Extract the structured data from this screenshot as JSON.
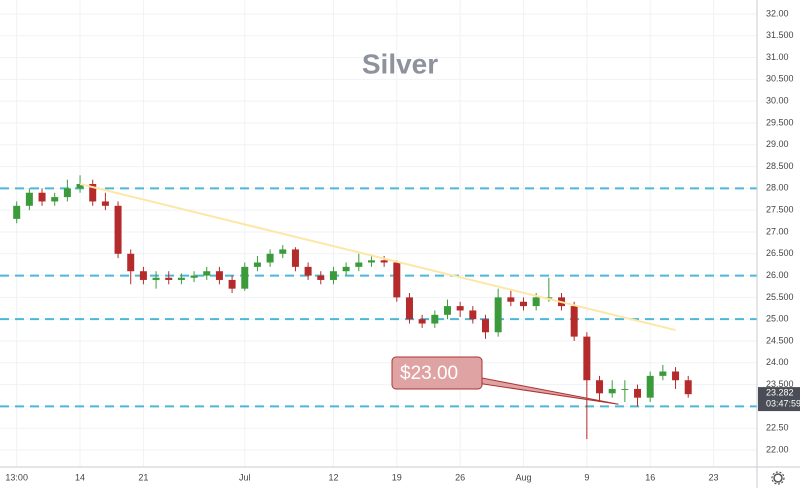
{
  "chart_data": {
    "type": "candlestick",
    "title": "Silver",
    "categories": [
      "13:00",
      null,
      null,
      null,
      null,
      "14",
      null,
      null,
      null,
      null,
      "21",
      null,
      null,
      null,
      null,
      null,
      null,
      null,
      "Jul",
      null,
      null,
      null,
      null,
      null,
      null,
      "12",
      null,
      null,
      null,
      null,
      "19",
      null,
      null,
      null,
      null,
      "26",
      null,
      null,
      null,
      null,
      "Aug",
      null,
      null,
      null,
      null,
      "9",
      null,
      null,
      null,
      null,
      "16",
      null,
      null,
      null,
      null,
      "23"
    ],
    "open": [
      27.3,
      27.6,
      27.9,
      27.7,
      27.8,
      28.0,
      28.1,
      27.7,
      27.6,
      26.5,
      26.1,
      25.9,
      25.95,
      25.9,
      25.95,
      26.0,
      26.1,
      25.9,
      25.7,
      26.2,
      26.3,
      26.5,
      26.6,
      26.2,
      26.0,
      25.9,
      26.1,
      26.2,
      26.3,
      26.35,
      26.3,
      25.5,
      25.0,
      24.9,
      25.1,
      25.3,
      25.2,
      25.0,
      24.7,
      25.5,
      25.4,
      25.3,
      25.5,
      25.5,
      25.3,
      24.6,
      23.6,
      23.3,
      23.4,
      23.4,
      23.2,
      23.7,
      23.8,
      23.6,
      null,
      null
    ],
    "high": [
      27.7,
      28.0,
      28.0,
      27.9,
      28.2,
      28.3,
      28.2,
      27.9,
      27.7,
      26.6,
      26.2,
      26.1,
      26.1,
      26.05,
      26.1,
      26.2,
      26.2,
      26.0,
      26.3,
      26.45,
      26.6,
      26.7,
      26.65,
      26.3,
      26.1,
      26.2,
      26.3,
      26.5,
      26.45,
      26.45,
      26.35,
      25.6,
      25.1,
      25.2,
      25.45,
      25.4,
      25.3,
      25.1,
      25.7,
      25.65,
      25.5,
      25.6,
      25.95,
      25.6,
      25.4,
      24.7,
      23.7,
      23.6,
      23.6,
      23.5,
      23.8,
      23.95,
      23.9,
      23.7,
      null,
      null
    ],
    "low": [
      27.2,
      27.5,
      27.6,
      27.6,
      27.7,
      27.9,
      27.6,
      27.5,
      26.4,
      25.8,
      25.8,
      25.7,
      25.8,
      25.8,
      25.85,
      25.9,
      25.8,
      25.6,
      25.65,
      26.1,
      26.2,
      26.4,
      26.1,
      25.9,
      25.8,
      25.8,
      26.0,
      26.1,
      26.2,
      26.2,
      25.4,
      24.9,
      24.8,
      24.8,
      25.0,
      25.05,
      24.9,
      24.55,
      24.6,
      25.3,
      25.2,
      25.2,
      25.4,
      25.2,
      24.5,
      22.25,
      23.1,
      23.2,
      23.1,
      23.0,
      23.1,
      23.6,
      23.4,
      23.2,
      null,
      null
    ],
    "close": [
      27.6,
      27.9,
      27.7,
      27.8,
      28.0,
      28.1,
      27.7,
      27.6,
      26.5,
      26.1,
      25.9,
      25.95,
      25.9,
      25.95,
      26.0,
      26.1,
      25.9,
      25.7,
      26.2,
      26.3,
      26.5,
      26.6,
      26.2,
      26.0,
      25.9,
      26.1,
      26.2,
      26.3,
      26.35,
      26.3,
      25.5,
      25.0,
      24.9,
      25.1,
      25.3,
      25.2,
      25.0,
      24.7,
      25.5,
      25.4,
      25.3,
      25.5,
      25.5,
      25.3,
      24.6,
      23.6,
      23.3,
      23.4,
      23.4,
      23.2,
      23.7,
      23.8,
      23.6,
      23.28,
      null,
      null
    ],
    "up_color": "#3b9b3b",
    "down_color": "#b52a2a",
    "ylim": [
      21.61,
      32.32
    ],
    "yticks": [
      {
        "value": 22,
        "label": "22.00"
      },
      {
        "value": 22.5,
        "label": "22.50"
      },
      {
        "value": 23,
        "label": "23.00"
      },
      {
        "value": 23.5,
        "label": "23.500"
      },
      {
        "value": 24,
        "label": "24.00"
      },
      {
        "value": 24.5,
        "label": "24.500"
      },
      {
        "value": 25,
        "label": "25.00"
      },
      {
        "value": 25.5,
        "label": "25.500"
      },
      {
        "value": 26,
        "label": "26.00"
      },
      {
        "value": 26.5,
        "label": "26.500"
      },
      {
        "value": 27,
        "label": "27.00"
      },
      {
        "value": 27.5,
        "label": "27.500"
      },
      {
        "value": 28,
        "label": "28.00"
      },
      {
        "value": 28.5,
        "label": "28.500"
      },
      {
        "value": 29,
        "label": "29.00"
      },
      {
        "value": 29.5,
        "label": "29.500"
      },
      {
        "value": 30,
        "label": "30.00"
      },
      {
        "value": 30.5,
        "label": "30.500"
      },
      {
        "value": 31,
        "label": "31.00"
      },
      {
        "value": 31.5,
        "label": "31.500"
      },
      {
        "value": 32,
        "label": "32.00"
      }
    ],
    "grid": true,
    "levels": [
      28,
      26,
      25,
      23
    ],
    "level_color": "#4bb8d8",
    "trendline": {
      "x": [
        5,
        52
      ],
      "y": [
        28.1,
        24.75
      ],
      "color": "#fde7a6"
    },
    "annotation": {
      "text": "$23.00",
      "x": 47.5,
      "y": 23.05
    },
    "last_price": 23.282,
    "countdown": "03:47:59"
  }
}
